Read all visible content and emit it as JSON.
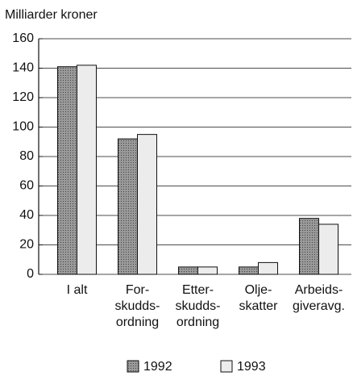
{
  "chart_data": {
    "type": "bar",
    "y_axis_label": "Milliarder kroner",
    "categories": [
      [
        "I alt"
      ],
      [
        "For-",
        "skudds-",
        "ordning"
      ],
      [
        "Etter-",
        "skudds-",
        "ordning"
      ],
      [
        "Olje-",
        "skatter"
      ],
      [
        "Arbeids-",
        "giveravg."
      ]
    ],
    "series": [
      {
        "name": "1992",
        "color": "#8a8a8a",
        "values": [
          141,
          92,
          5,
          5,
          38
        ]
      },
      {
        "name": "1993",
        "color": "#ececec",
        "values": [
          142,
          95,
          5,
          8,
          34
        ]
      }
    ],
    "ylim": [
      0,
      160
    ],
    "yticks": [
      0,
      20,
      40,
      60,
      80,
      100,
      120,
      140,
      160
    ],
    "grid": true,
    "legend": "bottom"
  }
}
